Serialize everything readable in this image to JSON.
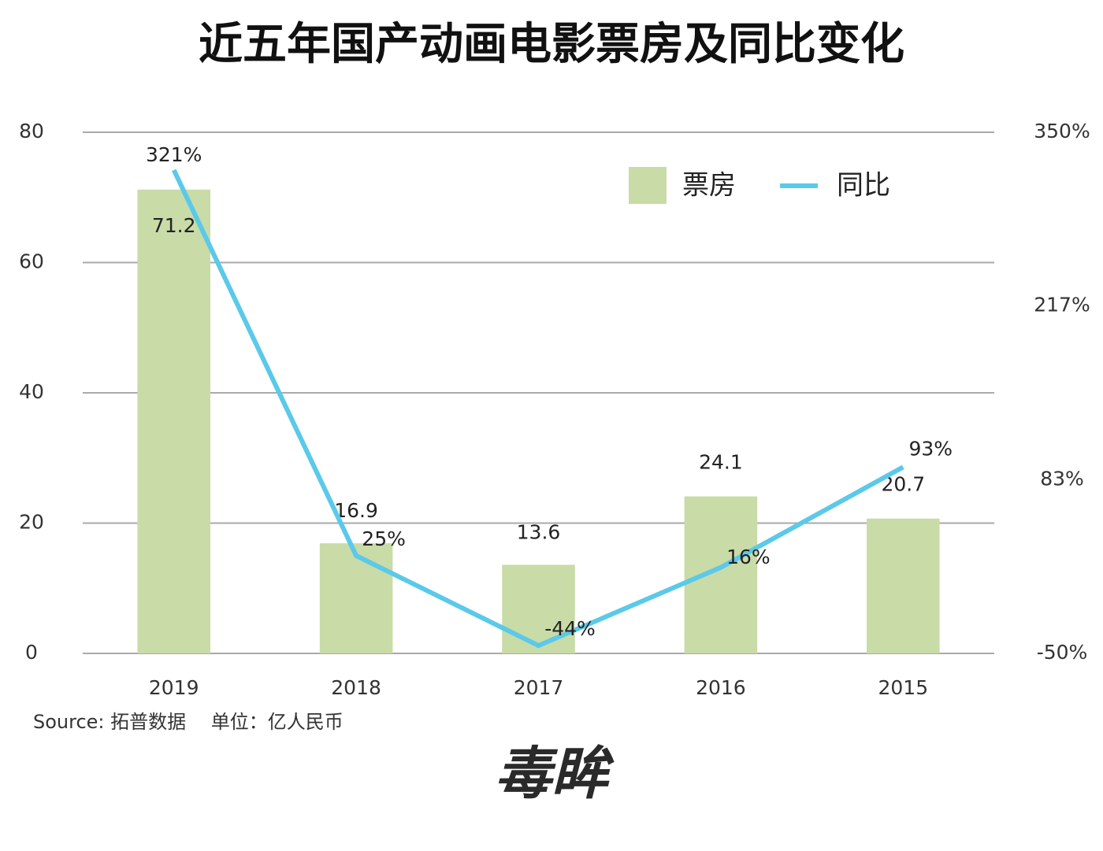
{
  "chart_data": {
    "type": "combo",
    "title": "近五年国产动画电影票房及同比变化",
    "categories": [
      "2019",
      "2018",
      "2017",
      "2016",
      "2015"
    ],
    "series": [
      {
        "name": "票房",
        "type": "bar",
        "color": "#c9dba7",
        "values": [
          71.2,
          16.9,
          13.6,
          24.1,
          20.7
        ]
      },
      {
        "name": "同比",
        "type": "line",
        "axis": "y2",
        "color": "#5bc9e9",
        "values": [
          321,
          25,
          -44,
          16,
          93
        ],
        "value_labels": [
          "321%",
          "25%",
          "-44%",
          "16%",
          "93%"
        ]
      }
    ],
    "ylim": [
      0,
      80
    ],
    "yticks": [
      0,
      20,
      40,
      60,
      80
    ],
    "y2lim": [
      -50,
      350
    ],
    "y2ticks": [
      {
        "value": -50,
        "label": "-50%"
      },
      {
        "value": 83.33,
        "label": "83%"
      },
      {
        "value": 216.67,
        "label": "217%"
      },
      {
        "value": 350,
        "label": "350%"
      }
    ],
    "grid": true,
    "legend": "top-right",
    "source": "Source: 拓普数据　 单位：亿人民币",
    "logo": "毒眸"
  }
}
